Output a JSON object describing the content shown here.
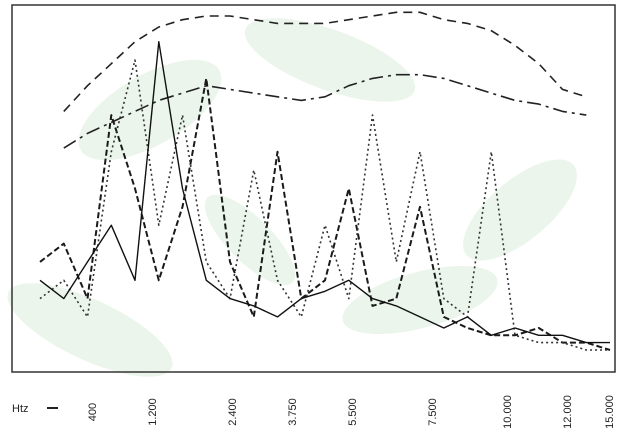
{
  "chart_data": {
    "type": "line",
    "x_label": "Htz",
    "x_tick_labels": [
      "400",
      "1.200",
      "2.400",
      "3.750",
      "5.500",
      "7.500",
      "10.000",
      "12.000",
      "15.000"
    ],
    "ylim": [
      0,
      100
    ],
    "series": [
      {
        "color": "#222222",
        "dash": "9 6",
        "width": 1.6,
        "values": [
          null,
          71,
          78,
          84,
          90,
          94,
          96,
          97,
          97,
          96,
          95,
          95,
          95,
          96,
          97,
          98,
          98,
          96,
          95,
          93,
          89,
          84,
          77,
          75,
          null
        ]
      },
      {
        "color": "#222222",
        "dash": "14 5 3 5",
        "width": 1.6,
        "values": [
          null,
          61,
          65,
          68,
          71,
          74,
          76,
          78,
          77,
          76,
          75,
          74,
          75,
          78,
          80,
          81,
          81,
          80,
          78,
          76,
          74,
          73,
          71,
          70,
          null
        ]
      },
      {
        "color": "#1a1a1a",
        "dash": "6 3",
        "width": 2,
        "values": [
          30,
          35,
          20,
          70,
          50,
          25,
          45,
          80,
          30,
          15,
          60,
          20,
          25,
          50,
          18,
          20,
          45,
          15,
          12,
          10,
          10,
          12,
          8,
          8,
          6
        ]
      },
      {
        "color": "#333333",
        "dash": "2 3",
        "width": 1.6,
        "values": [
          20,
          25,
          15,
          60,
          85,
          40,
          70,
          30,
          20,
          55,
          25,
          15,
          40,
          20,
          70,
          30,
          60,
          20,
          15,
          60,
          10,
          8,
          8,
          6,
          6
        ]
      },
      {
        "color": "#111111",
        "dash": "",
        "width": 1.4,
        "values": [
          25,
          20,
          30,
          40,
          25,
          90,
          50,
          25,
          20,
          18,
          15,
          20,
          22,
          25,
          20,
          18,
          15,
          12,
          15,
          10,
          12,
          10,
          10,
          8,
          8
        ]
      }
    ]
  }
}
